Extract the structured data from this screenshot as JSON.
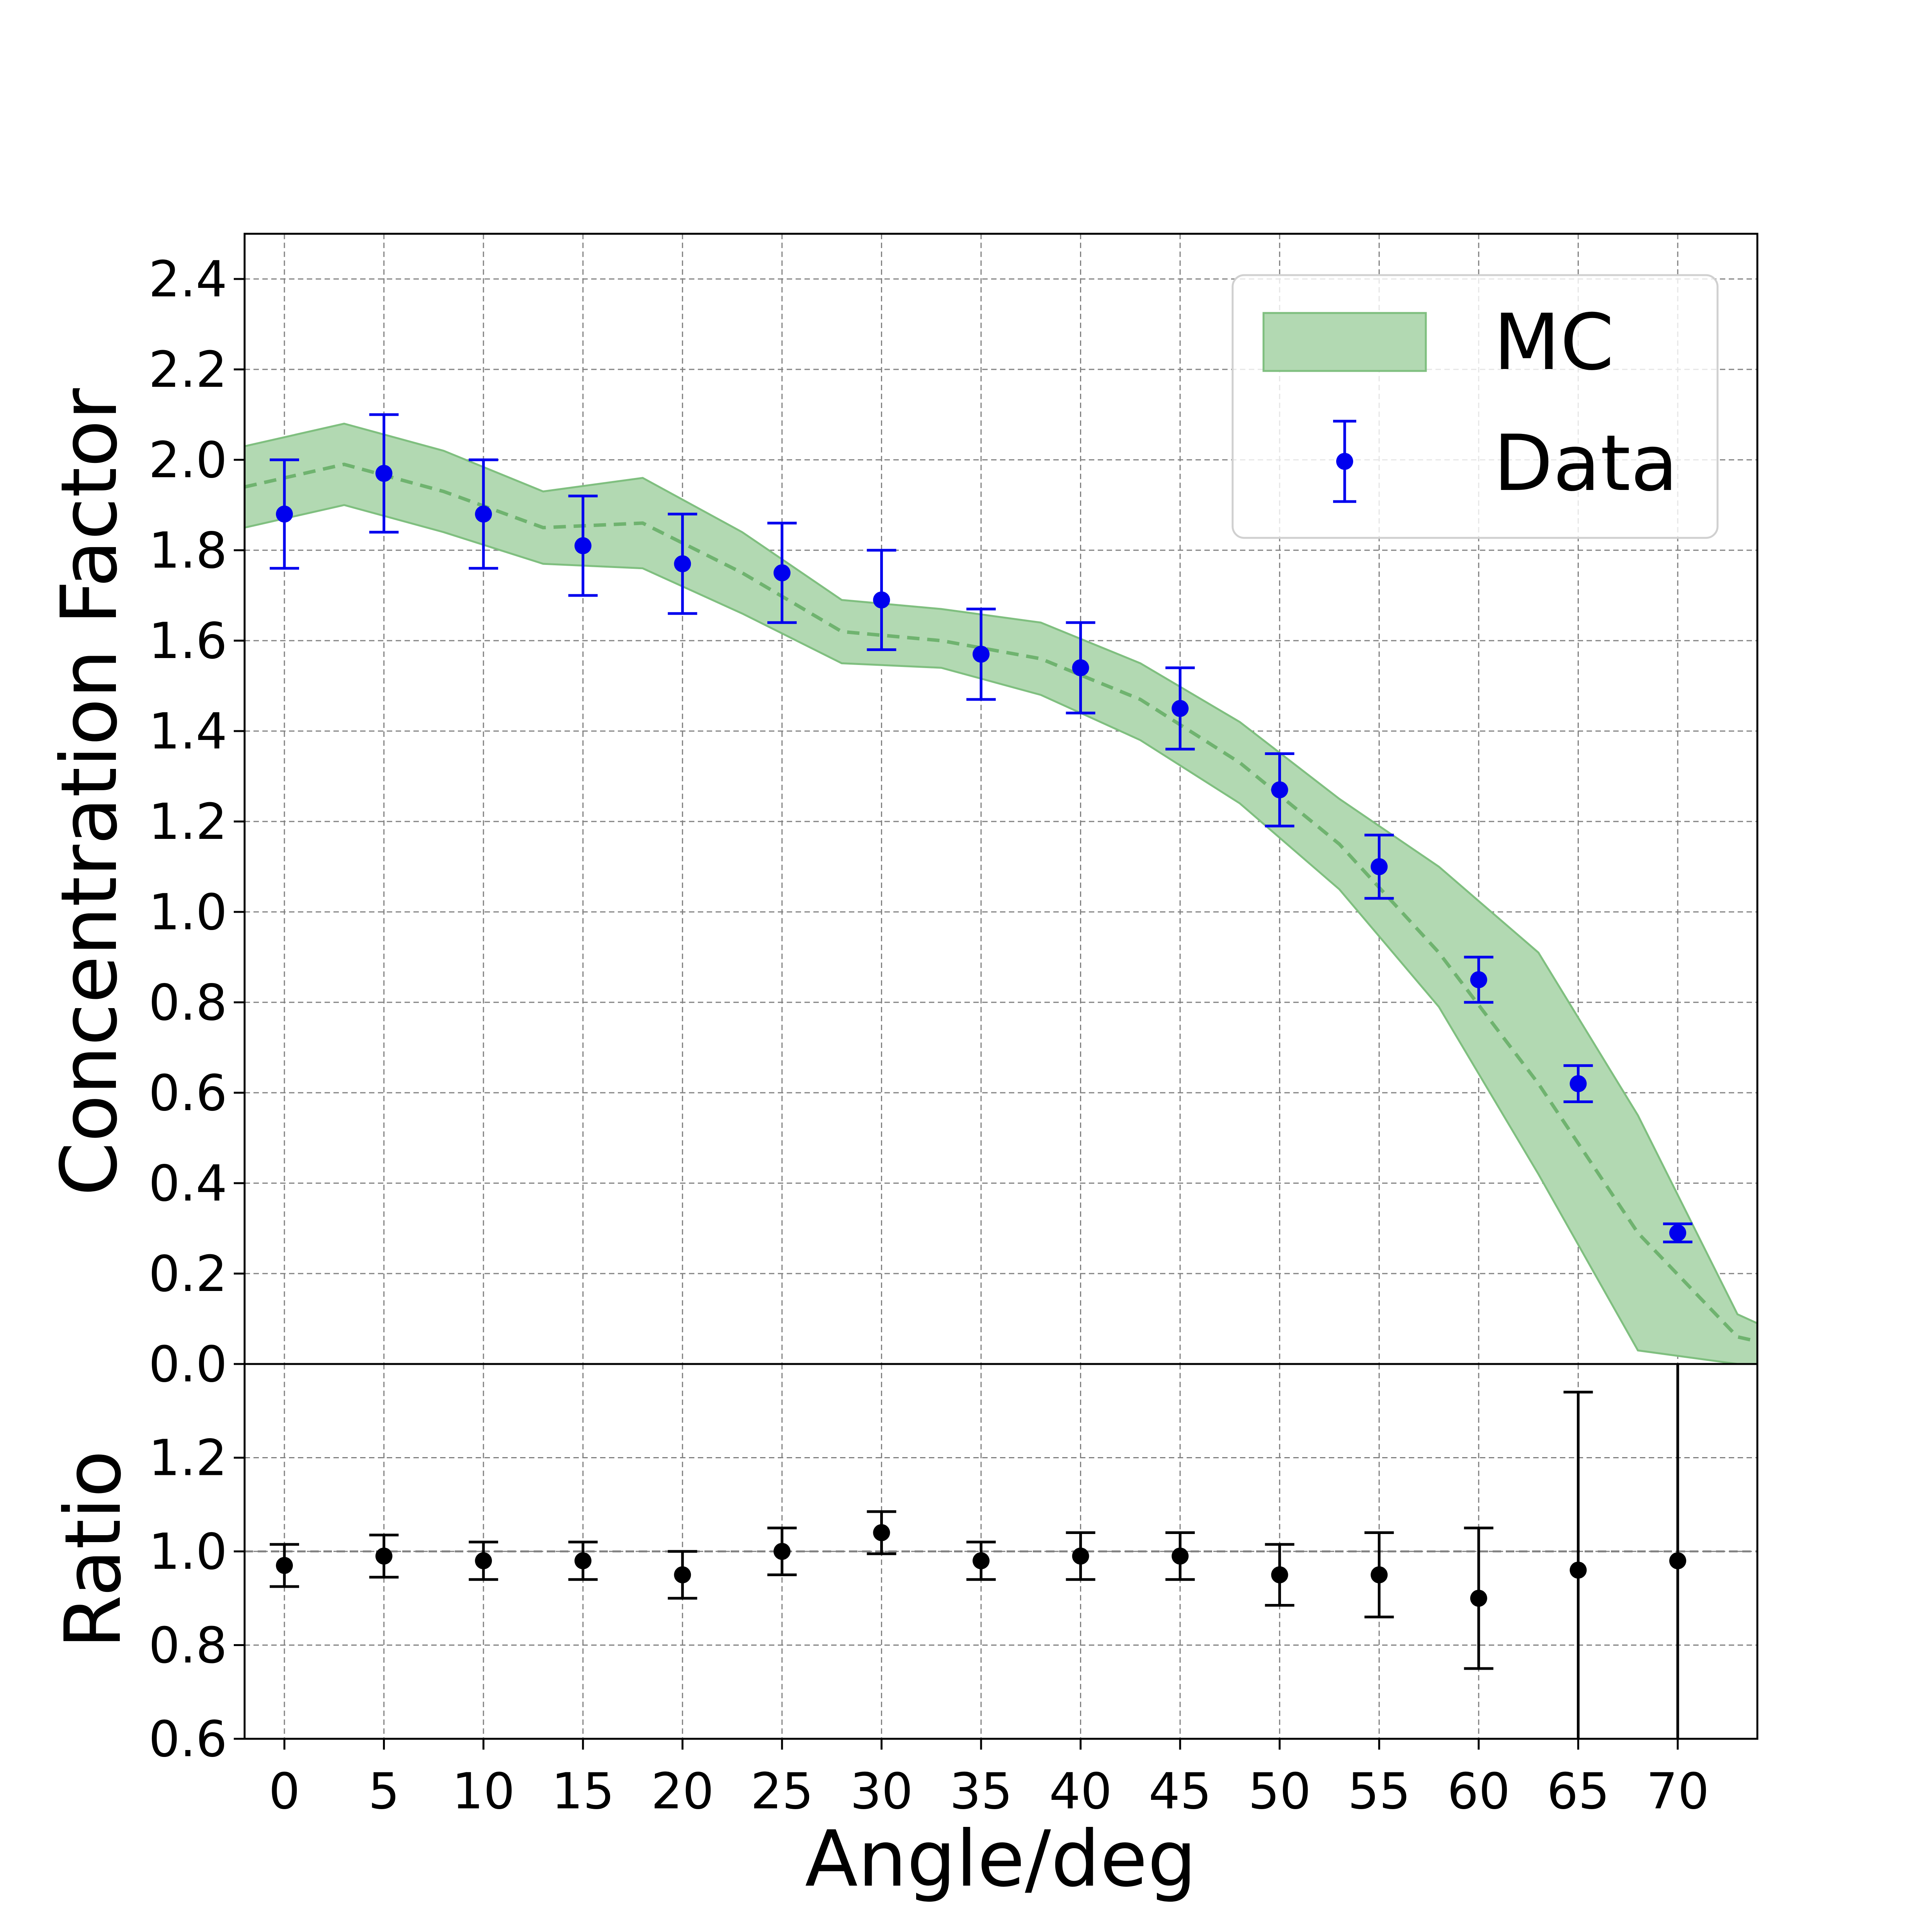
{
  "chart_data": [
    {
      "type": "line",
      "panel": "main",
      "ylabel": "Concentration Factor",
      "xlim": [
        -2,
        74
      ],
      "ylim": [
        0.0,
        2.5
      ],
      "yticks": [
        "0.0",
        "0.2",
        "0.4",
        "0.6",
        "0.8",
        "1.0",
        "1.2",
        "1.4",
        "1.6",
        "1.8",
        "2.0",
        "2.2",
        "2.4"
      ],
      "grid": true,
      "legend_position": "top-right",
      "legend": [
        "MC",
        "Data"
      ],
      "series": [
        {
          "name": "MC",
          "kind": "band",
          "color": "#b2d9b2",
          "x": [
            -2,
            3,
            8,
            13,
            18,
            23,
            28,
            33,
            38,
            43,
            48,
            53,
            58,
            63,
            68,
            73,
            74
          ],
          "central": [
            1.94,
            1.99,
            1.93,
            1.85,
            1.86,
            1.75,
            1.62,
            1.6,
            1.56,
            1.47,
            1.33,
            1.15,
            0.91,
            0.62,
            0.29,
            0.06,
            0.05
          ],
          "low": [
            1.85,
            1.9,
            1.84,
            1.77,
            1.76,
            1.66,
            1.55,
            1.54,
            1.48,
            1.38,
            1.24,
            1.05,
            0.79,
            0.42,
            0.03,
            0.0,
            0.0
          ],
          "high": [
            2.03,
            2.08,
            2.02,
            1.93,
            1.96,
            1.84,
            1.69,
            1.67,
            1.64,
            1.55,
            1.42,
            1.25,
            1.1,
            0.91,
            0.55,
            0.11,
            0.09
          ]
        },
        {
          "name": "Data",
          "kind": "errorbar",
          "color": "#0000ee",
          "x": [
            0,
            5,
            10,
            15,
            20,
            25,
            30,
            35,
            40,
            45,
            50,
            55,
            60,
            65,
            70
          ],
          "y": [
            1.88,
            1.97,
            1.88,
            1.81,
            1.77,
            1.75,
            1.69,
            1.57,
            1.54,
            1.45,
            1.27,
            1.1,
            0.85,
            0.62,
            0.29
          ],
          "yerr": [
            0.12,
            0.13,
            0.12,
            0.11,
            0.11,
            0.11,
            0.11,
            0.1,
            0.1,
            0.09,
            0.08,
            0.07,
            0.05,
            0.04,
            0.02
          ]
        }
      ]
    },
    {
      "type": "scatter",
      "panel": "ratio",
      "xlabel": "Angle/deg",
      "ylabel": "Ratio",
      "xlim": [
        -2,
        74
      ],
      "ylim": [
        0.6,
        1.4
      ],
      "xticks": [
        "0",
        "5",
        "10",
        "15",
        "20",
        "25",
        "30",
        "35",
        "40",
        "45",
        "50",
        "55",
        "60",
        "65",
        "70"
      ],
      "yticks": [
        "0.6",
        "0.8",
        "1.0",
        "1.2"
      ],
      "reference_line": 1.0,
      "grid": true,
      "series": [
        {
          "kind": "errorbar",
          "color": "#000000",
          "x": [
            0,
            5,
            10,
            15,
            20,
            25,
            30,
            35,
            40,
            45,
            50,
            55,
            60,
            65,
            70
          ],
          "y": [
            0.97,
            0.99,
            0.98,
            0.98,
            0.95,
            1.0,
            1.04,
            0.98,
            0.99,
            0.99,
            0.95,
            0.95,
            0.9,
            0.96,
            0.98
          ],
          "yerr": [
            0.045,
            0.045,
            0.04,
            0.04,
            0.05,
            0.05,
            0.045,
            0.04,
            0.05,
            0.05,
            0.065,
            0.09,
            0.15,
            0.38,
            0.45
          ]
        }
      ]
    }
  ]
}
